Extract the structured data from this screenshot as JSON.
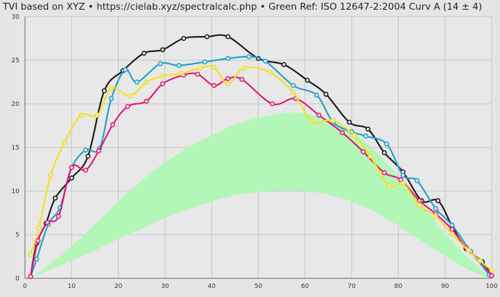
{
  "chart_title": "TVI based on XYZ  •  https://cielab.xyz/spectralcalc.php  •  Green Ref: ISO 12647-2:2004 Curv A (14 ± 4)",
  "chart_data": {
    "type": "line",
    "title": "TVI based on XYZ  •  https://cielab.xyz/spectralcalc.php  •  Green Ref: ISO 12647-2:2004 Curv A (14 ± 4)",
    "xlabel": "",
    "ylabel": "",
    "xlim": [
      0,
      100
    ],
    "ylim": [
      0,
      30
    ],
    "x_ticks": [
      0,
      10,
      20,
      30,
      40,
      50,
      60,
      70,
      80,
      90,
      100
    ],
    "y_ticks": [
      0,
      5,
      10,
      15,
      20,
      25,
      30
    ],
    "grid": true,
    "reference_band": {
      "color": "#b2f7b7",
      "x": [
        1.2,
        5,
        10,
        15,
        20,
        25,
        30,
        35,
        40,
        45,
        50,
        55,
        57,
        60,
        65,
        70,
        75,
        80,
        85,
        90,
        95,
        100
      ],
      "lower": [
        0,
        0.9,
        2.0,
        3.2,
        4.5,
        5.7,
        6.9,
        7.9,
        8.8,
        9.5,
        9.9,
        10.1,
        10.1,
        10.0,
        9.6,
        8.8,
        7.6,
        6.0,
        4.3,
        2.6,
        1.0,
        0
      ],
      "upper": [
        0,
        1.5,
        3.7,
        6.2,
        8.8,
        11.2,
        13.3,
        15.0,
        16.4,
        17.6,
        18.4,
        18.9,
        19.0,
        18.9,
        18.2,
        16.8,
        14.6,
        11.7,
        8.5,
        5.2,
        2.3,
        0
      ]
    },
    "series": [
      {
        "color": "#1a1a1a",
        "x": [
          1.2,
          2.5,
          4.5,
          6.5,
          10,
          13.5,
          17,
          21,
          25.5,
          29.5,
          34,
          39,
          43.5,
          50,
          55.5,
          60.5,
          64.5,
          69.5,
          73.5,
          77,
          81,
          85,
          88.5,
          91.5,
          94.5,
          98,
          100
        ],
        "y": [
          0.2,
          4.0,
          6.3,
          9.2,
          11.5,
          14.0,
          21.5,
          23.8,
          25.8,
          26.2,
          27.5,
          27.7,
          27.7,
          25.2,
          24.5,
          22.7,
          21.1,
          17.9,
          17.1,
          14.4,
          12.2,
          8.9,
          8.9,
          6.0,
          3.4,
          1.9,
          0.3
        ]
      },
      {
        "color": "#1fa2c9",
        "x": [
          1.2,
          2.5,
          5,
          7.5,
          10,
          13,
          16,
          18.5,
          21.5,
          24,
          29,
          33,
          38.5,
          43.5,
          48,
          51.5,
          57.5,
          62.5,
          66,
          70,
          73,
          77.5,
          81,
          84,
          88,
          91.5,
          95.5,
          99.5
        ],
        "y": [
          0.2,
          2.2,
          6.2,
          8.1,
          12.7,
          14.7,
          14.9,
          20.6,
          23.9,
          22.5,
          24.6,
          24.4,
          24.8,
          25.2,
          25.4,
          24.9,
          22.1,
          21.0,
          17.9,
          16.8,
          16.3,
          15.4,
          11.8,
          11.2,
          8.0,
          6.1,
          3.1,
          0.4
        ]
      },
      {
        "color": "#e0177a",
        "x": [
          1.2,
          2.8,
          4.8,
          7.2,
          10,
          13,
          15.8,
          18.8,
          22,
          26,
          29.5,
          34,
          37,
          40.5,
          43.5,
          46.5,
          53,
          58,
          63,
          68,
          72.5,
          77,
          80.5,
          84.5,
          88,
          91.5,
          94.5,
          97.5,
          100
        ],
        "y": [
          0.2,
          4.3,
          6.4,
          7.1,
          12.7,
          12.4,
          14.6,
          17.6,
          19.7,
          20.3,
          22.3,
          23.3,
          23.4,
          22.1,
          22.9,
          22.8,
          20.0,
          20.6,
          18.7,
          16.7,
          14.5,
          12.1,
          11.3,
          8.9,
          7.4,
          5.6,
          3.5,
          2.0,
          0.3
        ]
      },
      {
        "color": "#f4e01b",
        "x": [
          1.2,
          3,
          5.5,
          8.5,
          12,
          15.5,
          18.5,
          22.5,
          26,
          29.5,
          33.5,
          37.5,
          40.5,
          43.5,
          47,
          52.5,
          57.5,
          61.5,
          66,
          70.5,
          74,
          78,
          81,
          84.5,
          88,
          91.5,
          95,
          97.5,
          100
        ],
        "y": [
          2.7,
          5.8,
          11.8,
          15.6,
          18.7,
          18.7,
          21.8,
          20.9,
          22.5,
          23.2,
          23.5,
          24.1,
          24.2,
          22.3,
          24.1,
          23.6,
          21.3,
          18.0,
          18.1,
          16.4,
          14.0,
          10.6,
          10.9,
          8.4,
          7.1,
          5.1,
          3.2,
          2.0,
          0.9
        ]
      }
    ]
  }
}
